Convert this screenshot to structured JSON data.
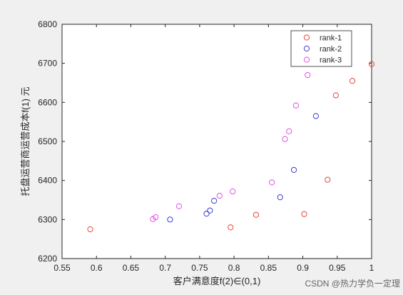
{
  "chart_data": {
    "type": "scatter",
    "title": "",
    "xlabel": "客户满意度f(2)∈(0,1)",
    "ylabel": "托盘运营商运营成本f(1) 元",
    "xlim": [
      0.55,
      1.0
    ],
    "ylim": [
      6200,
      6800
    ],
    "xticks": [
      "0.55",
      "0.6",
      "0.65",
      "0.7",
      "0.75",
      "0.8",
      "0.85",
      "0.9",
      "0.95",
      "1"
    ],
    "yticks": [
      "6200",
      "6300",
      "6400",
      "6500",
      "6600",
      "6700",
      "6800"
    ],
    "grid": false,
    "legend_position": "top-right",
    "marker": "open-circle",
    "series": [
      {
        "name": "rank-1",
        "color": "#e8443a",
        "points": [
          [
            0.591,
            6275
          ],
          [
            0.795,
            6280
          ],
          [
            0.832,
            6312
          ],
          [
            0.902,
            6314
          ],
          [
            0.936,
            6402
          ],
          [
            0.948,
            6618
          ],
          [
            0.972,
            6655
          ],
          [
            1.0,
            6698
          ]
        ]
      },
      {
        "name": "rank-2",
        "color": "#3c3cd8",
        "points": [
          [
            0.707,
            6300
          ],
          [
            0.76,
            6315
          ],
          [
            0.765,
            6323
          ],
          [
            0.771,
            6348
          ],
          [
            0.867,
            6357
          ],
          [
            0.887,
            6427
          ],
          [
            0.919,
            6565
          ]
        ]
      },
      {
        "name": "rank-3",
        "color": "#e64fe6",
        "points": [
          [
            0.682,
            6301
          ],
          [
            0.686,
            6306
          ],
          [
            0.72,
            6334
          ],
          [
            0.779,
            6361
          ],
          [
            0.798,
            6372
          ],
          [
            0.855,
            6395
          ],
          [
            0.874,
            6506
          ],
          [
            0.88,
            6526
          ],
          [
            0.89,
            6592
          ],
          [
            0.907,
            6670
          ]
        ]
      }
    ]
  },
  "watermark": "CSDN @热力学负一定理"
}
